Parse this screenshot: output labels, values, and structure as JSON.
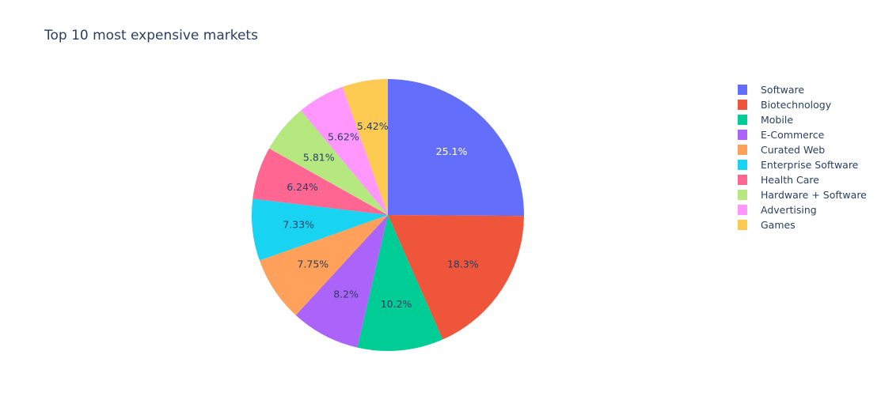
{
  "chart_data": {
    "type": "pie",
    "title": "Top 10 most expensive markets",
    "categories": [
      "Software",
      "Biotechnology",
      "Mobile",
      "E-Commerce",
      "Curated Web",
      "Enterprise Software",
      "Health Care",
      "Hardware + Software",
      "Advertising",
      "Games"
    ],
    "values": [
      25.1,
      18.3,
      10.2,
      8.2,
      7.75,
      7.33,
      6.24,
      5.81,
      5.62,
      5.42
    ],
    "value_labels": [
      "25.1%",
      "18.3%",
      "10.2%",
      "8.2%",
      "7.75%",
      "7.33%",
      "6.24%",
      "5.81%",
      "5.62%",
      "5.42%"
    ],
    "colors": [
      "#636efa",
      "#ef553b",
      "#00cc96",
      "#ab63fa",
      "#ffa15a",
      "#19d3f3",
      "#ff6692",
      "#b6e880",
      "#ff97ff",
      "#fecb52"
    ],
    "label_colors": [
      "#ffffff",
      "#2a3f5f",
      "#2a3f5f",
      "#2a3f5f",
      "#2a3f5f",
      "#2a3f5f",
      "#2a3f5f",
      "#2a3f5f",
      "#2a3f5f",
      "#2a3f5f"
    ],
    "legend_position": "right",
    "direction": "clockwise",
    "start_angle": "12 o'clock"
  }
}
